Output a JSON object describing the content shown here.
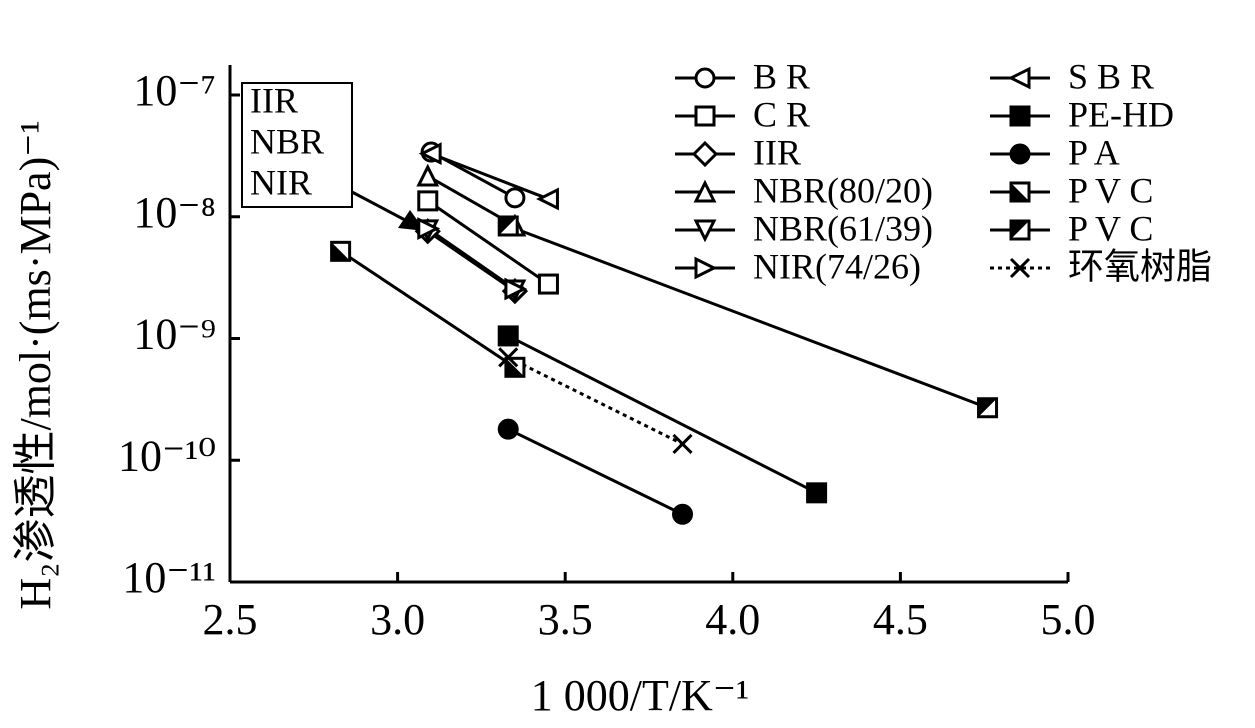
{
  "chart_data": {
    "type": "line",
    "log_y": true,
    "x_label": "1 000/T/K⁻¹",
    "y_label": "H₂渗透性/mol·(ms·MPa)⁻¹",
    "annotation": [
      "IIR",
      "NBR",
      "NIR"
    ],
    "xlim": [
      2.5,
      5.0
    ],
    "xticks": [
      2.5,
      {
        "value": 3,
        "label": "3.0"
      },
      3.5,
      {
        "value": 4,
        "label": "4.0"
      },
      4.5,
      {
        "value": 5,
        "label": "5.0"
      }
    ],
    "ylim": [
      1e-11,
      1e-07
    ],
    "yticks": [
      {
        "value": 1e-11,
        "label": "10⁻¹¹"
      },
      {
        "value": 1e-10,
        "label": "10⁻¹⁰"
      },
      {
        "value": 1e-09,
        "label": "10⁻⁹"
      },
      {
        "value": 1e-08,
        "label": "10⁻⁸"
      },
      {
        "value": 1e-07,
        "label": "10⁻⁷"
      }
    ],
    "legend": "upper right",
    "series": [
      {
        "name": "B R",
        "color": "#000000",
        "marker": "circle-open",
        "line": "solid",
        "x": [
          3.1,
          3.35
        ],
        "values": [
          3.4e-08,
          1.43e-08
        ]
      },
      {
        "name": "C R",
        "color": "#000000",
        "marker": "square-open",
        "line": "solid",
        "x": [
          3.09,
          3.45
        ],
        "values": [
          1.35e-08,
          2.8e-09
        ]
      },
      {
        "name": "IIR",
        "color": "#000000",
        "marker": "diamond-open",
        "line": "solid",
        "x": [
          3.09,
          3.35
        ],
        "values": [
          7.6e-09,
          2.45e-09
        ]
      },
      {
        "name": "NBR(80/20)",
        "color": "#000000",
        "marker": "triangle-up-open",
        "line": "solid",
        "x": [
          3.09,
          3.35
        ],
        "values": [
          2.16e-08,
          8.4e-09
        ]
      },
      {
        "name": "NBR(61/39)",
        "color": "#000000",
        "marker": "triangle-down-open",
        "line": "solid",
        "x": [
          3.09,
          3.35
        ],
        "values": [
          7.8e-09,
          2.5e-09
        ]
      },
      {
        "name": "NIR(74/26)",
        "color": "#000000",
        "marker": "triangle-right-open",
        "line": "solid",
        "x": [
          3.09,
          3.35
        ],
        "values": [
          8e-09,
          2.55e-09
        ]
      },
      {
        "name": "S B R",
        "color": "#000000",
        "marker": "triangle-left-open",
        "line": "solid",
        "x": [
          3.1,
          3.45
        ],
        "values": [
          3.3e-08,
          1.4e-08
        ]
      },
      {
        "name": "PE-HD",
        "color": "#000000",
        "marker": "square-filled",
        "line": "solid",
        "x": [
          3.33,
          4.25
        ],
        "values": [
          1.05e-09,
          5.4e-11
        ]
      },
      {
        "name": "P A",
        "color": "#000000",
        "marker": "circle-filled",
        "line": "solid",
        "x": [
          3.33,
          3.85
        ],
        "values": [
          1.8e-10,
          3.6e-11
        ]
      },
      {
        "name": "P V C",
        "color": "#000000",
        "marker": "square-half-lower",
        "line": "solid",
        "x": [
          2.83,
          3.35
        ],
        "values": [
          5.2e-09,
          5.8e-10
        ]
      },
      {
        "name": "P V C",
        "color": "#000000",
        "marker": "square-half-upper",
        "line": "solid",
        "x": [
          3.33,
          4.76
        ],
        "values": [
          8.4e-09,
          2.7e-10
        ]
      },
      {
        "name": "环氧树脂",
        "color": "#000000",
        "marker": "cross",
        "line": "dotted",
        "x": [
          3.33,
          3.85
        ],
        "values": [
          7e-10,
          1.36e-10
        ]
      }
    ]
  }
}
